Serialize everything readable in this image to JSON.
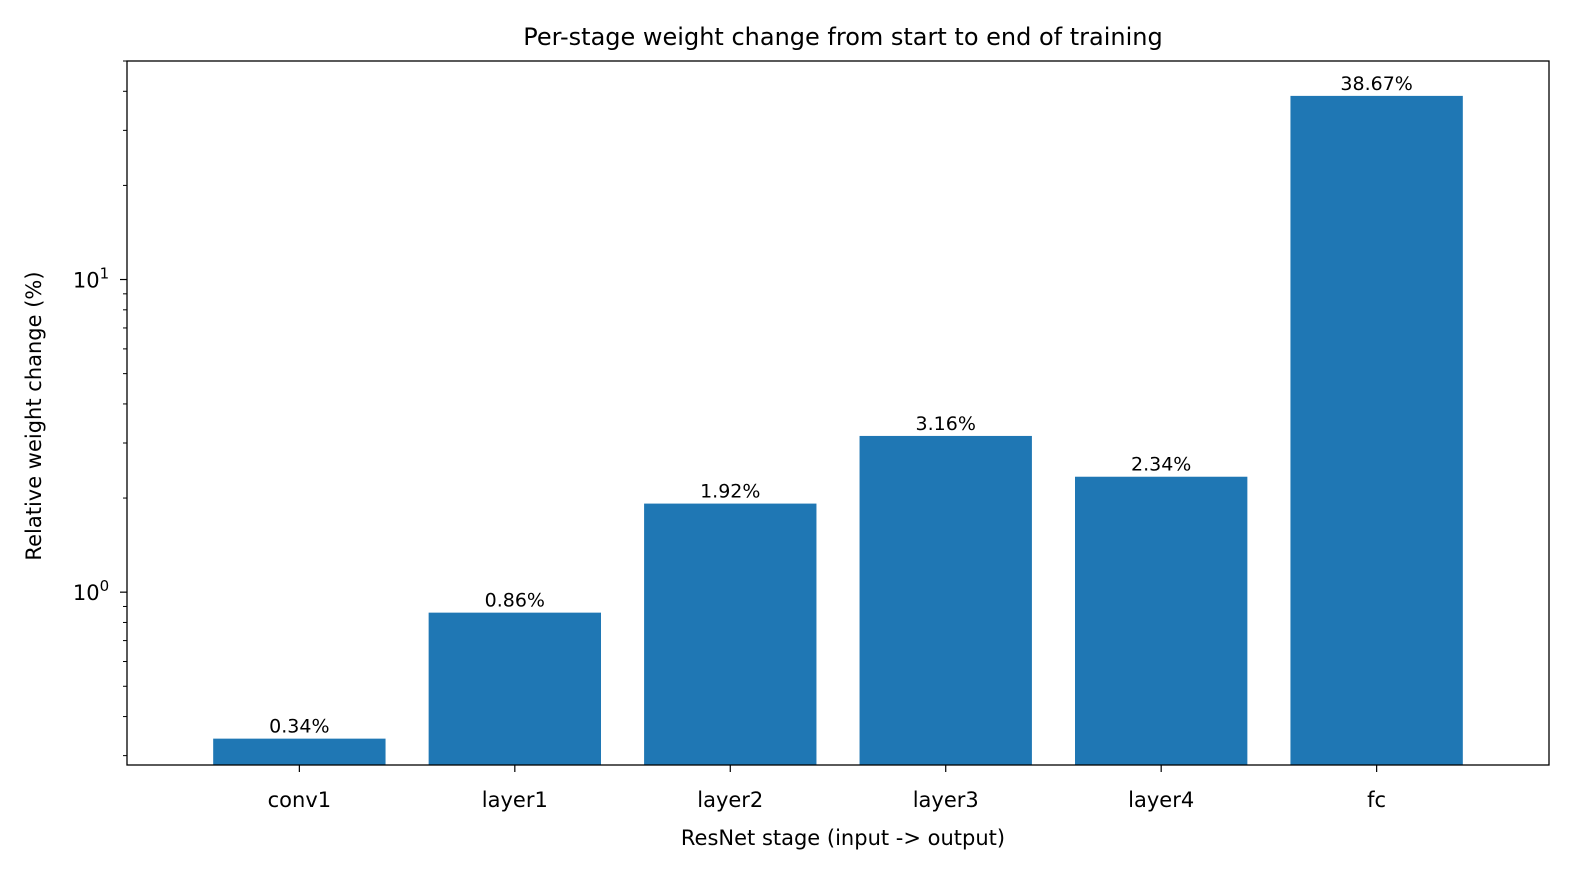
{
  "chart_data": {
    "type": "bar",
    "title": "Per-stage weight change from start to end of training",
    "xlabel": "ResNet stage  (input -> output)",
    "ylabel": "Relative weight change  (%)",
    "yscale": "log",
    "ylim": [
      0.28,
      50
    ],
    "yticks": [
      {
        "value": 1,
        "base": "10",
        "exp": "0"
      },
      {
        "value": 10,
        "base": "10",
        "exp": "1"
      }
    ],
    "categories": [
      "conv1",
      "layer1",
      "layer2",
      "layer3",
      "layer4",
      "fc"
    ],
    "values": [
      0.34,
      0.86,
      1.92,
      3.16,
      2.34,
      38.67
    ],
    "data_labels": [
      "0.34%",
      "0.86%",
      "1.92%",
      "3.16%",
      "2.34%",
      "38.67%"
    ],
    "bar_color": "#1f77b4",
    "grid": false,
    "legend": "none"
  }
}
